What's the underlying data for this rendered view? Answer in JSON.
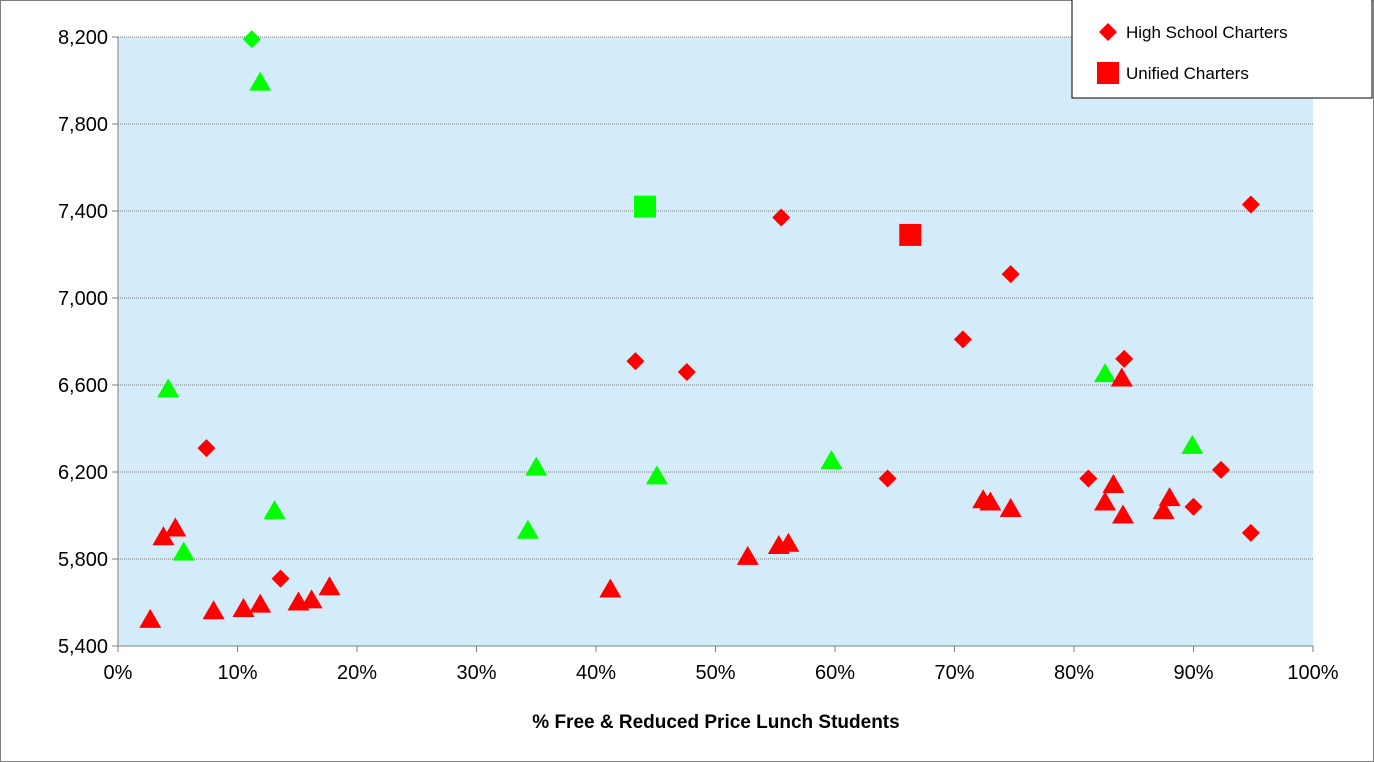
{
  "chart_data": {
    "type": "scatter",
    "xlabel": "% Free & Reduced Price Lunch Students",
    "ylabel": "",
    "xlim": [
      0,
      1
    ],
    "ylim": [
      5400,
      8200
    ],
    "x_ticks": [
      "0%",
      "10%",
      "20%",
      "30%",
      "40%",
      "50%",
      "60%",
      "70%",
      "80%",
      "90%",
      "100%"
    ],
    "y_ticks": [
      "5,400",
      "5,800",
      "6,200",
      "6,600",
      "7,000",
      "7,400",
      "7,800",
      "8,200"
    ],
    "grid": "horizontal",
    "legend_position": "top-right",
    "legend": [
      {
        "label": "High School Charters",
        "marker": "diamond",
        "color": "#ff0000"
      },
      {
        "label": "Unified Charters",
        "marker": "square",
        "color": "#ff0000"
      }
    ],
    "series": [
      {
        "marker": "triangle",
        "color": "#00ff00",
        "points": [
          [
            0.119,
            7990
          ],
          [
            0.042,
            6580
          ],
          [
            0.055,
            5830
          ],
          [
            0.131,
            6020
          ],
          [
            0.343,
            5930
          ],
          [
            0.35,
            6220
          ],
          [
            0.451,
            6180
          ],
          [
            0.597,
            6250
          ],
          [
            0.826,
            6650
          ],
          [
            0.899,
            6320
          ]
        ]
      },
      {
        "marker": "diamond",
        "color": "#00ff00",
        "points": [
          [
            0.112,
            8190
          ]
        ]
      },
      {
        "marker": "square",
        "color": "#00ff00",
        "points": [
          [
            0.441,
            7420
          ]
        ]
      },
      {
        "marker": "triangle",
        "color": "#ff0000",
        "points": [
          [
            0.027,
            5520
          ],
          [
            0.038,
            5900
          ],
          [
            0.048,
            5940
          ],
          [
            0.08,
            5560
          ],
          [
            0.105,
            5570
          ],
          [
            0.119,
            5590
          ],
          [
            0.151,
            5600
          ],
          [
            0.162,
            5610
          ],
          [
            0.177,
            5670
          ],
          [
            0.412,
            5660
          ],
          [
            0.527,
            5810
          ],
          [
            0.553,
            5860
          ],
          [
            0.561,
            5870
          ],
          [
            0.724,
            6070
          ],
          [
            0.73,
            6060
          ],
          [
            0.747,
            6030
          ],
          [
            0.826,
            6060
          ],
          [
            0.833,
            6140
          ],
          [
            0.84,
            6630
          ],
          [
            0.841,
            6000
          ],
          [
            0.875,
            6020
          ],
          [
            0.88,
            6080
          ]
        ]
      },
      {
        "marker": "diamond",
        "color": "#ff0000",
        "points": [
          [
            0.074,
            6310
          ],
          [
            0.136,
            5710
          ],
          [
            0.433,
            6710
          ],
          [
            0.476,
            6660
          ],
          [
            0.555,
            7370
          ],
          [
            0.644,
            6170
          ],
          [
            0.707,
            6810
          ],
          [
            0.747,
            7110
          ],
          [
            0.812,
            6170
          ],
          [
            0.842,
            6720
          ],
          [
            0.9,
            6040
          ],
          [
            0.923,
            6210
          ],
          [
            0.948,
            7430
          ],
          [
            0.948,
            5920
          ]
        ]
      },
      {
        "marker": "square",
        "color": "#ff0000",
        "points": [
          [
            0.663,
            7290
          ]
        ]
      }
    ]
  }
}
